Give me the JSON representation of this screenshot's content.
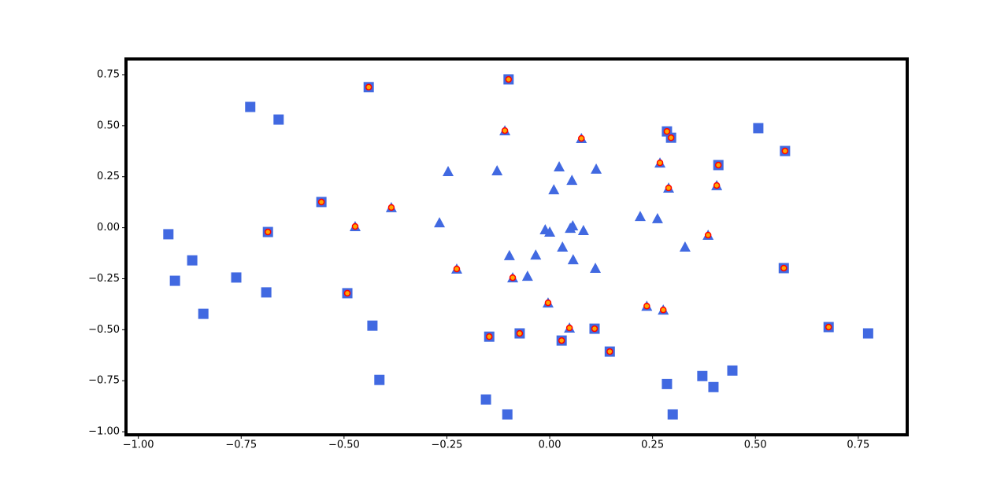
{
  "chart_data": {
    "type": "scatter",
    "xlim": [
      -1.03,
      0.869
    ],
    "ylim": [
      -1.015,
      0.827
    ],
    "xticks": [
      {
        "value": -1,
        "label": "−1.00"
      },
      {
        "value": -0.75,
        "label": "−0.75"
      },
      {
        "value": -0.5,
        "label": "−0.50"
      },
      {
        "value": -0.25,
        "label": "−0.25"
      },
      {
        "value": 0,
        "label": "0.00"
      },
      {
        "value": 0.25,
        "label": "0.25"
      },
      {
        "value": 0.5,
        "label": "0.50"
      },
      {
        "value": 0.75,
        "label": "0.75"
      }
    ],
    "yticks": [
      {
        "value": -1,
        "label": "−1.00"
      },
      {
        "value": -0.75,
        "label": "−0.75"
      },
      {
        "value": -0.5,
        "label": "−0.50"
      },
      {
        "value": -0.25,
        "label": "−0.25"
      },
      {
        "value": 0,
        "label": "0.00"
      },
      {
        "value": 0.25,
        "label": "0.25"
      },
      {
        "value": 0.5,
        "label": "0.50"
      },
      {
        "value": 0.75,
        "label": "0.75"
      }
    ],
    "series": [
      {
        "marker": "square",
        "color": "#4169e1",
        "x": [
          -0.44,
          -0.1,
          -0.728,
          -0.659,
          0.285,
          0.295,
          0.507,
          0.572,
          0.41,
          -0.555,
          -0.927,
          -0.685,
          -0.869,
          -0.911,
          -0.762,
          -0.689,
          -0.492,
          -0.842,
          0.569,
          -0.431,
          -0.147,
          -0.073,
          0.029,
          0.109,
          0.146,
          0.678,
          0.774,
          -0.414,
          -0.155,
          -0.103,
          0.285,
          0.299,
          0.371,
          0.398,
          0.444
        ],
        "values": [
          0.689,
          0.727,
          0.592,
          0.53,
          0.472,
          0.441,
          0.488,
          0.376,
          0.307,
          0.126,
          -0.032,
          -0.021,
          -0.16,
          -0.26,
          -0.244,
          -0.317,
          -0.321,
          -0.422,
          -0.198,
          -0.48,
          -0.534,
          -0.518,
          -0.553,
          -0.495,
          -0.607,
          -0.487,
          -0.518,
          -0.746,
          -0.842,
          -0.915,
          -0.766,
          -0.915,
          -0.727,
          -0.781,
          -0.7
        ]
      },
      {
        "marker": "triangle",
        "color": "#4169e1",
        "x": [
          -0.109,
          0.077,
          -0.247,
          -0.128,
          0.023,
          0.113,
          0.268,
          0.01,
          0.054,
          0.289,
          0.406,
          -0.385,
          -0.473,
          -0.268,
          -0.011,
          0,
          0.056,
          0.05,
          0.082,
          0.22,
          0.262,
          0.385,
          0.329,
          -0.098,
          -0.034,
          0.031,
          0.057,
          0.111,
          -0.226,
          -0.09,
          -0.054,
          -0.004,
          0.236,
          0.276,
          0.048
        ],
        "values": [
          0.476,
          0.438,
          0.276,
          0.28,
          0.299,
          0.288,
          0.318,
          0.187,
          0.233,
          0.195,
          0.207,
          0.099,
          0.006,
          0.025,
          -0.009,
          -0.021,
          0.01,
          -0.002,
          -0.013,
          0.056,
          0.045,
          -0.036,
          -0.094,
          -0.136,
          -0.133,
          -0.094,
          -0.156,
          -0.198,
          -0.202,
          -0.245,
          -0.237,
          -0.368,
          -0.384,
          -0.403,
          -0.491
        ]
      },
      {
        "marker": "circle",
        "color": "#ffa500",
        "edgecolor": "#ff0000",
        "x": [
          -0.44,
          -0.1,
          0.285,
          0.295,
          0.572,
          0.41,
          -0.555,
          -0.685,
          -0.492,
          0.569,
          -0.147,
          -0.073,
          0.029,
          0.109,
          0.146,
          0.678,
          -0.109,
          0.077,
          0.268,
          0.289,
          0.406,
          -0.385,
          -0.473,
          0.385,
          -0.226,
          -0.09,
          -0.004,
          0.236,
          0.276,
          0.048
        ],
        "values": [
          0.689,
          0.727,
          0.472,
          0.441,
          0.376,
          0.307,
          0.126,
          -0.021,
          -0.321,
          -0.198,
          -0.534,
          -0.518,
          -0.553,
          -0.495,
          -0.607,
          -0.487,
          0.476,
          0.438,
          0.318,
          0.195,
          0.207,
          0.099,
          0.006,
          -0.036,
          -0.202,
          -0.245,
          -0.368,
          -0.384,
          -0.403,
          -0.491
        ]
      }
    ]
  }
}
